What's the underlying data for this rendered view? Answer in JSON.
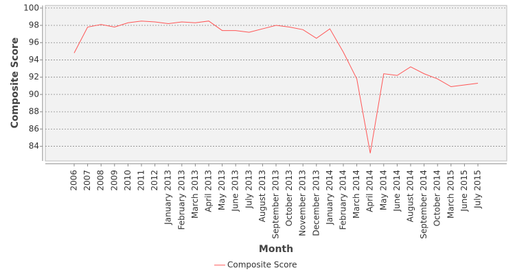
{
  "chart_data": {
    "type": "line",
    "x_label": "Month",
    "y_label": "Composite Score",
    "categories": [
      "2006",
      "2007",
      "2008",
      "2009",
      "2010",
      "2011",
      "2012",
      "January 2013",
      "February 2013",
      "March 2013",
      "April 2013",
      "May 2013",
      "June 2013",
      "July 2013",
      "August 2013",
      "September 2013",
      "October 2013",
      "November 2013",
      "December 2013",
      "January 2014",
      "February 2014",
      "March 2014",
      "April 2014",
      "May 2014",
      "June 2014",
      "August 2014",
      "September 2014",
      "October 2014",
      "March 2015",
      "June 2015",
      "July 2015"
    ],
    "series": [
      {
        "name": "Composite Score",
        "color": "#ff5555",
        "values": [
          94.8,
          97.8,
          98.1,
          97.8,
          98.3,
          98.5,
          98.4,
          98.2,
          98.4,
          98.3,
          98.5,
          97.4,
          97.4,
          97.2,
          97.6,
          98.0,
          97.8,
          97.5,
          96.5,
          97.6,
          94.9,
          91.8,
          83.2,
          92.4,
          92.2,
          93.2,
          92.4,
          91.8,
          90.9,
          91.1,
          91.3
        ]
      }
    ],
    "ylim": [
      82.3,
      100.3
    ],
    "yticks": [
      84,
      86,
      88,
      90,
      92,
      94,
      96,
      98,
      100
    ],
    "grid": true,
    "legend": "bottom"
  }
}
